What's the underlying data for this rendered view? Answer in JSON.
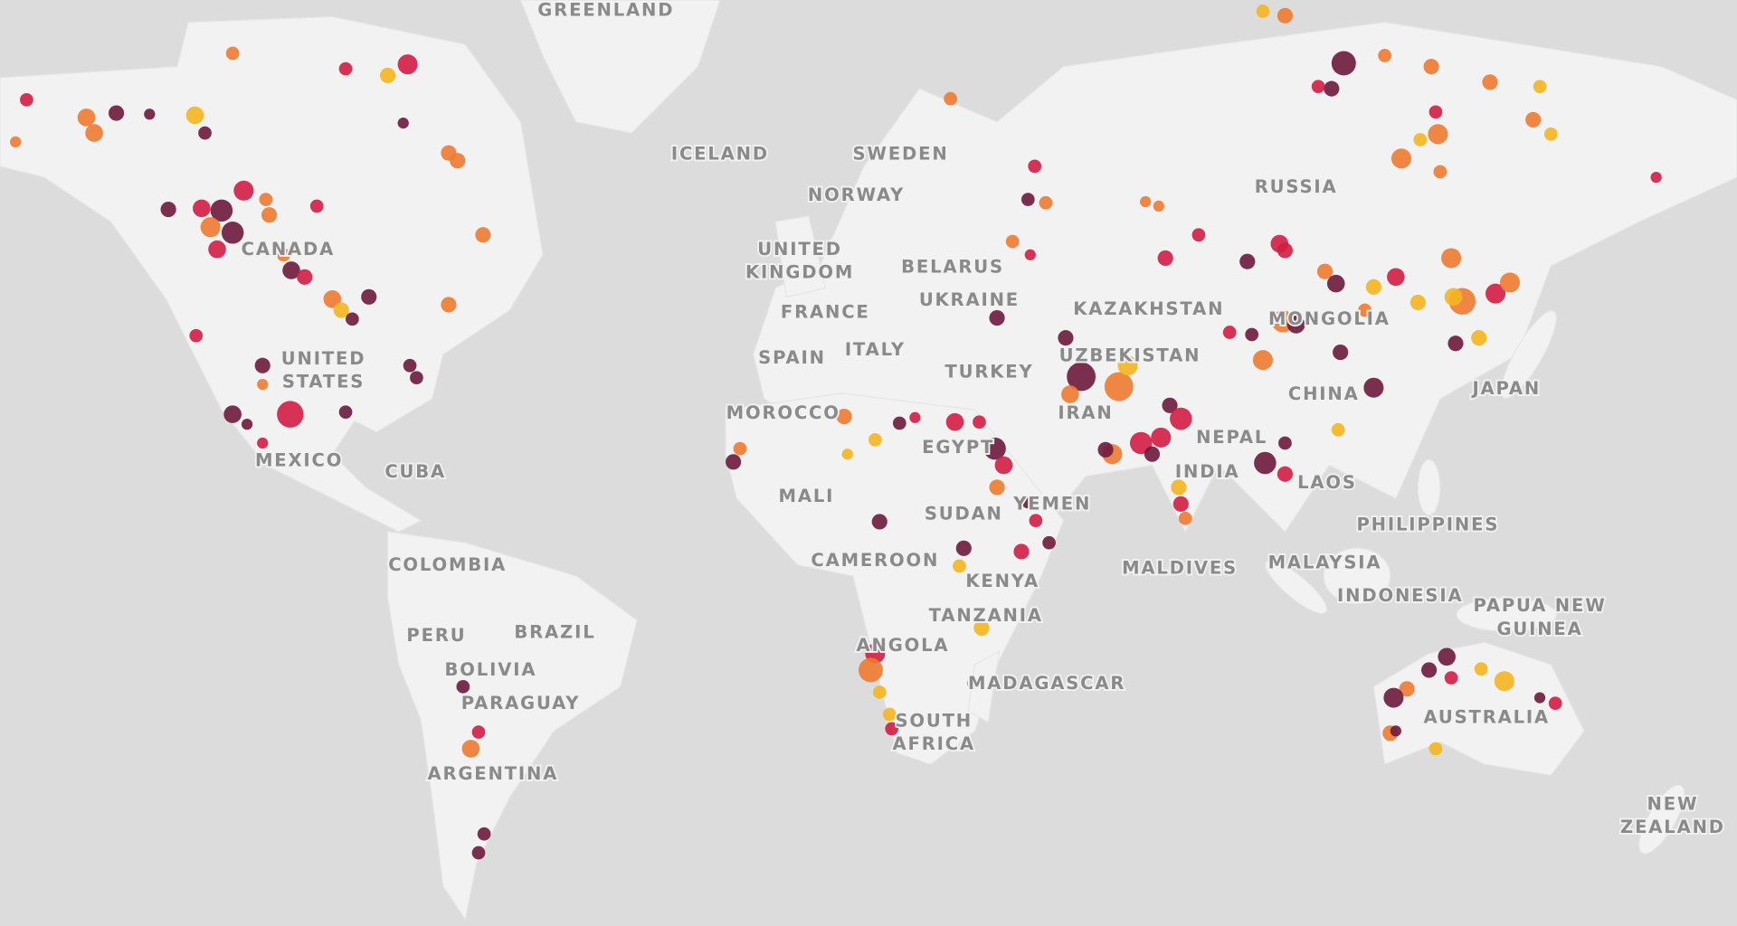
{
  "map": {
    "labels": [
      [
        "GREENLAND"
      ],
      [
        "ICELAND"
      ],
      [
        "SWEDEN"
      ],
      [
        "NORWAY"
      ],
      [
        "UNITED",
        "KINGDOM"
      ],
      [
        "BELARUS"
      ],
      [
        "UKRAINE"
      ],
      [
        "FRANCE"
      ],
      [
        "SPAIN"
      ],
      [
        "ITALY"
      ],
      [
        "TURKEY"
      ],
      [
        "KAZAKHSTAN"
      ],
      [
        "UZBEKISTAN"
      ],
      [
        "MONGOLIA"
      ],
      [
        "RUSSIA"
      ],
      [
        "CHINA"
      ],
      [
        "JAPAN"
      ],
      [
        "IRAN"
      ],
      [
        "NEPAL"
      ],
      [
        "INDIA"
      ],
      [
        "LAOS"
      ],
      [
        "PHILIPPINES"
      ],
      [
        "MALDIVES"
      ],
      [
        "MALAYSIA"
      ],
      [
        "INDONESIA"
      ],
      [
        "PAPUA NEW",
        "GUINEA"
      ],
      [
        "AUSTRALIA"
      ],
      [
        "NEW",
        "ZEALAND"
      ],
      [
        "MOROCCO"
      ],
      [
        "EGYPT"
      ],
      [
        "MALI"
      ],
      [
        "SUDAN"
      ],
      [
        "YEMEN"
      ],
      [
        "CAMEROON"
      ],
      [
        "KENYA"
      ],
      [
        "TANZANIA"
      ],
      [
        "ANGOLA"
      ],
      [
        "MADAGASCAR"
      ],
      [
        "SOUTH",
        "AFRICA"
      ],
      [
        "CANADA"
      ],
      [
        "UNITED",
        "STATES"
      ],
      [
        "MEXICO"
      ],
      [
        "CUBA"
      ],
      [
        "COLOMBIA"
      ],
      [
        "PERU"
      ],
      [
        "BRAZIL"
      ],
      [
        "BOLIVIA"
      ],
      [
        "PARAGUAY"
      ],
      [
        "ARGENTINA"
      ]
    ]
  }
}
